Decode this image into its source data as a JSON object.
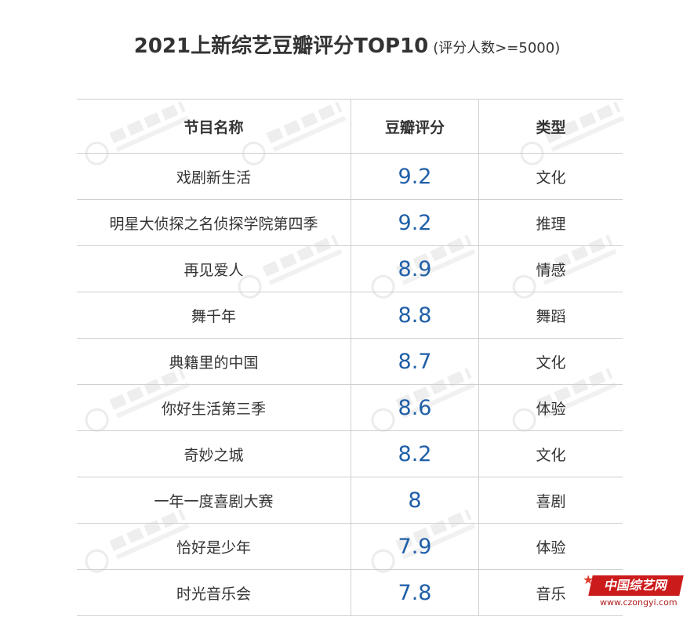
{
  "title": {
    "main": "2021上新综艺豆瓣评分TOP10",
    "sub": "(评分人数>=5000)"
  },
  "table": {
    "headers": [
      "节目名称",
      "豆瓣评分",
      "类型"
    ],
    "rows": [
      {
        "name": "戏剧新生活",
        "score": "9.2",
        "type": "文化"
      },
      {
        "name": "明星大侦探之名侦探学院第四季",
        "score": "9.2",
        "type": "推理"
      },
      {
        "name": "再见爱人",
        "score": "8.9",
        "type": "情感"
      },
      {
        "name": "舞千年",
        "score": "8.8",
        "type": "舞蹈"
      },
      {
        "name": "典籍里的中国",
        "score": "8.7",
        "type": "文化"
      },
      {
        "name": "你好生活第三季",
        "score": "8.6",
        "type": "体验"
      },
      {
        "name": "奇妙之城",
        "score": "8.2",
        "type": "文化"
      },
      {
        "name": "一年一度喜剧大赛",
        "score": "8",
        "type": "喜剧"
      },
      {
        "name": "恰好是少年",
        "score": "7.9",
        "type": "体验"
      },
      {
        "name": "时光音乐会",
        "score": "7.8",
        "type": "音乐"
      }
    ]
  },
  "watermark": {
    "text": "云合数据",
    "sub": "ENLIGHTENT"
  },
  "logo": {
    "text": "中国综艺网",
    "url": "www.czongyi.com"
  },
  "colors": {
    "score": "#1f5fa8",
    "logo": "#cc1b1b"
  }
}
